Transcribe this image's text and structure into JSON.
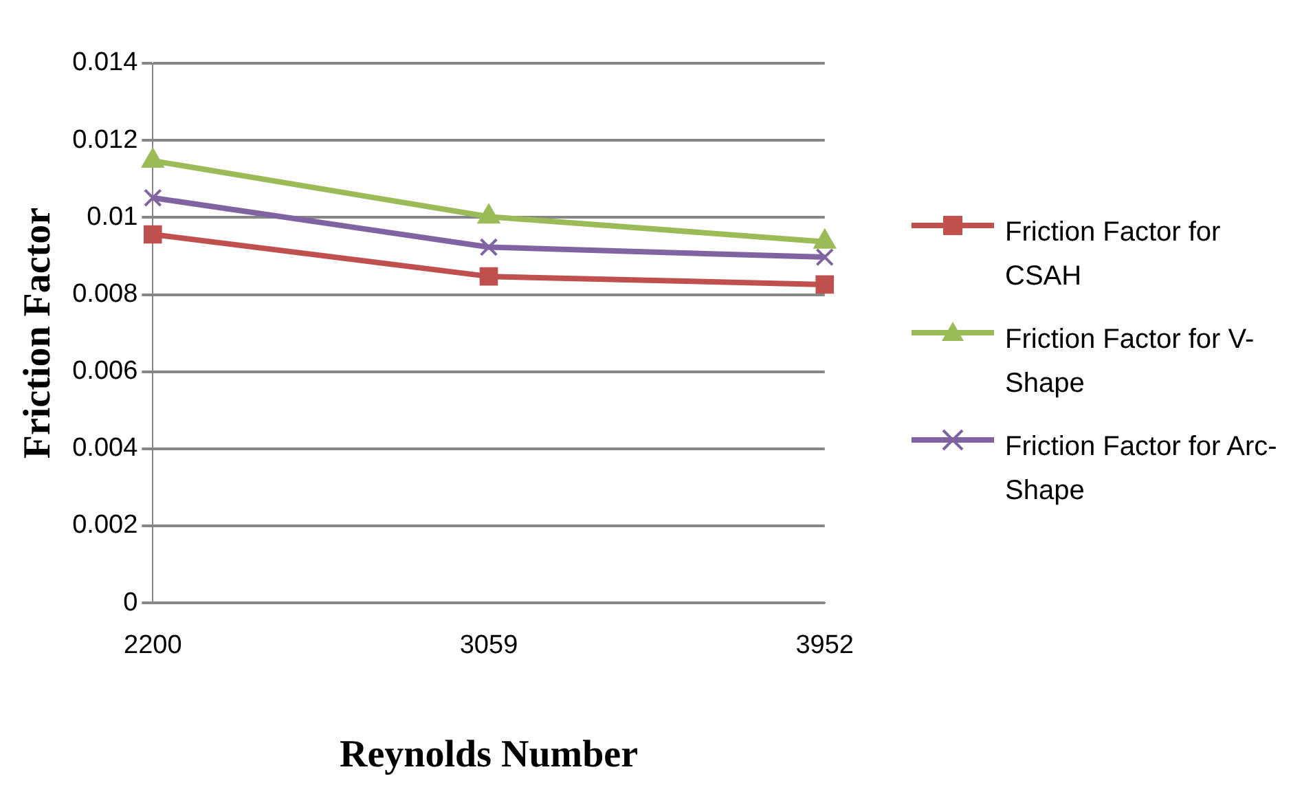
{
  "chart_data": {
    "type": "line",
    "xlabel": "Reynolds Number",
    "ylabel": "Friction Factor",
    "categories": [
      "2200",
      "3059",
      "3952"
    ],
    "series": [
      {
        "name": "Friction Factor for CSAH",
        "color": "#c0504d",
        "marker": "square",
        "values": [
          0.00956,
          0.00847,
          0.00826
        ]
      },
      {
        "name": "Friction Factor for V-Shape",
        "color": "#9bbb59",
        "marker": "triangle",
        "values": [
          0.01147,
          0.01002,
          0.00937
        ]
      },
      {
        "name": "Friction Factor for Arc-Shape",
        "color": "#8064a2",
        "marker": "cross",
        "values": [
          0.01051,
          0.00923,
          0.00897
        ]
      }
    ],
    "ylim": [
      0,
      0.014
    ],
    "yticks": [
      0,
      0.002,
      0.004,
      0.006,
      0.008,
      0.01,
      0.012,
      0.014
    ],
    "grid": "y",
    "legend": "right",
    "line_style": "solid"
  }
}
